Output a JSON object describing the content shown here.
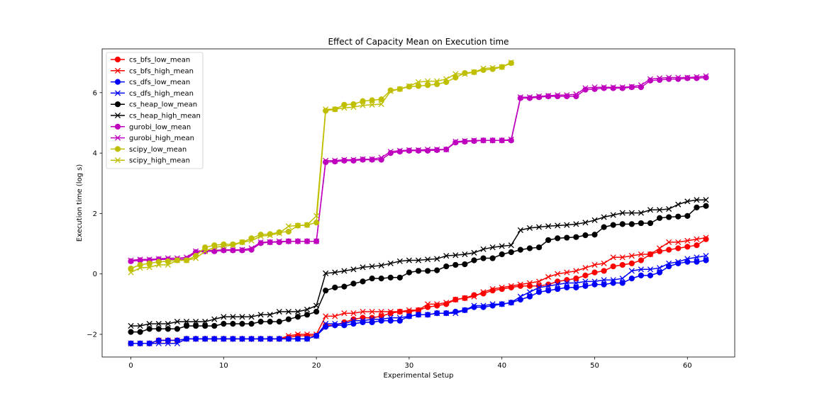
{
  "chart_data": {
    "type": "line",
    "title": "Effect of Capacity Mean on Execution time",
    "xlabel": "Experimental Setup",
    "ylabel": "Execution time (log s)",
    "xlim": [
      -3.1,
      65.1
    ],
    "ylim": [
      -2.75,
      7.45
    ],
    "xticks": [
      0,
      10,
      20,
      30,
      40,
      50,
      60
    ],
    "yticks": [
      -2,
      0,
      2,
      4,
      6
    ],
    "grid": false,
    "legend_position": "top-left",
    "series": [
      {
        "name": "cs_bfs_low_mean",
        "color": "#ff0000",
        "marker": "circle",
        "x": [
          0,
          1,
          2,
          3,
          4,
          5,
          6,
          7,
          8,
          9,
          10,
          11,
          12,
          13,
          14,
          15,
          16,
          17,
          18,
          19,
          20,
          21,
          22,
          23,
          24,
          25,
          26,
          27,
          28,
          29,
          30,
          31,
          32,
          33,
          34,
          35,
          36,
          37,
          38,
          39,
          40,
          41,
          42,
          43,
          44,
          45,
          46,
          47,
          48,
          49,
          50,
          51,
          52,
          53,
          54,
          55,
          56,
          57,
          58,
          59,
          60,
          61,
          62
        ],
        "y": [
          -2.3,
          -2.3,
          -2.3,
          -2.2,
          -2.2,
          -2.2,
          -2.15,
          -2.15,
          -2.15,
          -2.15,
          -2.15,
          -2.15,
          -2.15,
          -2.15,
          -2.15,
          -2.15,
          -2.15,
          -2.1,
          -2.05,
          -2.05,
          -2.05,
          -1.7,
          -1.7,
          -1.6,
          -1.5,
          -1.45,
          -1.45,
          -1.4,
          -1.3,
          -1.25,
          -1.25,
          -1.2,
          -1.1,
          -1.05,
          -1.0,
          -0.85,
          -0.8,
          -0.7,
          -0.65,
          -0.55,
          -0.5,
          -0.45,
          -0.4,
          -0.4,
          -0.4,
          -0.35,
          -0.25,
          -0.2,
          -0.15,
          -0.05,
          0.05,
          0.1,
          0.25,
          0.3,
          0.35,
          0.45,
          0.65,
          0.75,
          0.8,
          0.85,
          0.9,
          0.95,
          1.15
        ]
      },
      {
        "name": "cs_bfs_high_mean",
        "color": "#ff0000",
        "marker": "x",
        "x": [
          0,
          1,
          2,
          3,
          4,
          5,
          6,
          7,
          8,
          9,
          10,
          11,
          12,
          13,
          14,
          15,
          16,
          17,
          18,
          19,
          20,
          21,
          22,
          23,
          24,
          25,
          26,
          27,
          28,
          29,
          30,
          31,
          32,
          33,
          34,
          35,
          36,
          37,
          38,
          39,
          40,
          41,
          42,
          43,
          44,
          45,
          46,
          47,
          48,
          49,
          50,
          51,
          52,
          53,
          54,
          55,
          56,
          57,
          58,
          59,
          60,
          61,
          62
        ],
        "y": [
          -2.3,
          -2.3,
          -2.3,
          -2.2,
          -2.2,
          -2.2,
          -2.15,
          -2.15,
          -2.15,
          -2.15,
          -2.15,
          -2.15,
          -2.15,
          -2.15,
          -2.15,
          -2.15,
          -2.15,
          -2.05,
          -2.0,
          -2.0,
          -2.0,
          -1.4,
          -1.4,
          -1.3,
          -1.3,
          -1.25,
          -1.25,
          -1.25,
          -1.25,
          -1.25,
          -1.2,
          -1.2,
          -1.0,
          -1.0,
          -0.95,
          -0.85,
          -0.8,
          -0.75,
          -0.6,
          -0.5,
          -0.45,
          -0.4,
          -0.35,
          -0.3,
          -0.25,
          -0.1,
          0.0,
          0.05,
          0.1,
          0.2,
          0.3,
          0.35,
          0.55,
          0.55,
          0.6,
          0.65,
          0.65,
          0.85,
          1.05,
          1.05,
          1.1,
          1.15,
          1.2
        ]
      },
      {
        "name": "cs_dfs_low_mean",
        "color": "#0000ff",
        "marker": "circle",
        "x": [
          0,
          1,
          2,
          3,
          4,
          5,
          6,
          7,
          8,
          9,
          10,
          11,
          12,
          13,
          14,
          15,
          16,
          17,
          18,
          19,
          20,
          21,
          22,
          23,
          24,
          25,
          26,
          27,
          28,
          29,
          30,
          31,
          32,
          33,
          34,
          35,
          36,
          37,
          38,
          39,
          40,
          41,
          42,
          43,
          44,
          45,
          46,
          47,
          48,
          49,
          50,
          51,
          52,
          53,
          54,
          55,
          56,
          57,
          58,
          59,
          60,
          61,
          62
        ],
        "y": [
          -2.3,
          -2.3,
          -2.3,
          -2.2,
          -2.2,
          -2.2,
          -2.15,
          -2.15,
          -2.15,
          -2.15,
          -2.15,
          -2.15,
          -2.15,
          -2.15,
          -2.15,
          -2.15,
          -2.15,
          -2.15,
          -2.15,
          -2.15,
          -2.05,
          -1.75,
          -1.7,
          -1.7,
          -1.65,
          -1.6,
          -1.6,
          -1.55,
          -1.55,
          -1.55,
          -1.4,
          -1.35,
          -1.35,
          -1.3,
          -1.3,
          -1.25,
          -1.2,
          -1.1,
          -1.1,
          -1.05,
          -1.0,
          -0.95,
          -0.85,
          -0.75,
          -0.6,
          -0.55,
          -0.5,
          -0.45,
          -0.45,
          -0.4,
          -0.35,
          -0.35,
          -0.3,
          -0.3,
          -0.15,
          -0.05,
          -0.05,
          0.05,
          0.25,
          0.35,
          0.4,
          0.4,
          0.45
        ]
      },
      {
        "name": "cs_dfs_high_mean",
        "color": "#0000ff",
        "marker": "x",
        "x": [
          0,
          1,
          2,
          3,
          4,
          5,
          6,
          7,
          8,
          9,
          10,
          11,
          12,
          13,
          14,
          15,
          16,
          17,
          18,
          19,
          20,
          21,
          22,
          23,
          24,
          25,
          26,
          27,
          28,
          29,
          30,
          31,
          32,
          33,
          34,
          35,
          36,
          37,
          38,
          39,
          40,
          41,
          42,
          43,
          44,
          45,
          46,
          47,
          48,
          49,
          50,
          51,
          52,
          53,
          54,
          55,
          56,
          57,
          58,
          59,
          60,
          61,
          62
        ],
        "y": [
          -2.3,
          -2.3,
          -2.3,
          -2.3,
          -2.3,
          -2.3,
          -2.15,
          -2.15,
          -2.15,
          -2.15,
          -2.15,
          -2.15,
          -2.15,
          -2.15,
          -2.15,
          -2.15,
          -2.15,
          -2.15,
          -2.15,
          -2.15,
          -2.05,
          -1.65,
          -1.65,
          -1.65,
          -1.55,
          -1.55,
          -1.5,
          -1.5,
          -1.45,
          -1.45,
          -1.4,
          -1.35,
          -1.35,
          -1.3,
          -1.3,
          -1.3,
          -1.2,
          -1.05,
          -1.05,
          -1.0,
          -1.0,
          -0.95,
          -0.75,
          -0.6,
          -0.45,
          -0.4,
          -0.35,
          -0.3,
          -0.3,
          -0.25,
          -0.25,
          -0.2,
          -0.2,
          -0.15,
          0.1,
          0.15,
          0.15,
          0.2,
          0.35,
          0.4,
          0.5,
          0.55,
          0.6
        ]
      },
      {
        "name": "cs_heap_low_mean",
        "color": "#000000",
        "marker": "circle",
        "x": [
          0,
          1,
          2,
          3,
          4,
          5,
          6,
          7,
          8,
          9,
          10,
          11,
          12,
          13,
          14,
          15,
          16,
          17,
          18,
          19,
          20,
          21,
          22,
          23,
          24,
          25,
          26,
          27,
          28,
          29,
          30,
          31,
          32,
          33,
          34,
          35,
          36,
          37,
          38,
          39,
          40,
          41,
          42,
          43,
          44,
          45,
          46,
          47,
          48,
          49,
          50,
          51,
          52,
          53,
          54,
          55,
          56,
          57,
          58,
          59,
          60,
          61,
          62
        ],
        "y": [
          -1.92,
          -1.92,
          -1.82,
          -1.82,
          -1.82,
          -1.82,
          -1.72,
          -1.72,
          -1.72,
          -1.72,
          -1.65,
          -1.65,
          -1.65,
          -1.65,
          -1.58,
          -1.58,
          -1.58,
          -1.5,
          -1.42,
          -1.35,
          -1.25,
          -0.55,
          -0.45,
          -0.42,
          -0.32,
          -0.25,
          -0.15,
          -0.15,
          -0.12,
          -0.12,
          0.05,
          0.1,
          0.1,
          0.12,
          0.25,
          0.3,
          0.32,
          0.45,
          0.52,
          0.52,
          0.65,
          0.72,
          0.8,
          0.85,
          0.88,
          1.12,
          1.18,
          1.2,
          1.22,
          1.28,
          1.3,
          1.55,
          1.62,
          1.65,
          1.65,
          1.68,
          1.68,
          1.85,
          1.88,
          1.9,
          1.92,
          2.2,
          2.25
        ]
      },
      {
        "name": "cs_heap_high_mean",
        "color": "#000000",
        "marker": "x",
        "x": [
          0,
          1,
          2,
          3,
          4,
          5,
          6,
          7,
          8,
          9,
          10,
          11,
          12,
          13,
          14,
          15,
          16,
          17,
          18,
          19,
          20,
          21,
          22,
          23,
          24,
          25,
          26,
          27,
          28,
          29,
          30,
          31,
          32,
          33,
          34,
          35,
          36,
          37,
          38,
          39,
          40,
          41,
          42,
          43,
          44,
          45,
          46,
          47,
          48,
          49,
          50,
          51,
          52,
          53,
          54,
          55,
          56,
          57,
          58,
          59,
          60,
          61,
          62
        ],
        "y": [
          -1.72,
          -1.72,
          -1.65,
          -1.65,
          -1.65,
          -1.58,
          -1.58,
          -1.58,
          -1.58,
          -1.5,
          -1.42,
          -1.42,
          -1.42,
          -1.42,
          -1.35,
          -1.35,
          -1.25,
          -1.25,
          -1.25,
          -1.18,
          -1.05,
          0.02,
          0.05,
          0.1,
          0.15,
          0.22,
          0.25,
          0.28,
          0.35,
          0.42,
          0.45,
          0.45,
          0.48,
          0.5,
          0.6,
          0.62,
          0.65,
          0.7,
          0.82,
          0.88,
          0.92,
          0.95,
          1.45,
          1.52,
          1.55,
          1.58,
          1.6,
          1.62,
          1.65,
          1.7,
          1.78,
          1.88,
          1.95,
          2.02,
          2.02,
          2.02,
          2.12,
          2.12,
          2.15,
          2.3,
          2.4,
          2.45,
          2.45
        ]
      },
      {
        "name": "gurobi_low_mean",
        "color": "#bf00bf",
        "marker": "circle",
        "x": [
          0,
          1,
          2,
          3,
          4,
          5,
          6,
          7,
          8,
          9,
          10,
          11,
          12,
          13,
          14,
          15,
          16,
          17,
          18,
          19,
          20,
          21,
          22,
          23,
          24,
          25,
          26,
          27,
          28,
          29,
          30,
          31,
          32,
          33,
          34,
          35,
          36,
          37,
          38,
          39,
          40,
          41,
          42,
          43,
          44,
          45,
          46,
          47,
          48,
          49,
          50,
          51,
          52,
          53,
          54,
          55,
          56,
          57,
          58,
          59,
          60,
          61,
          62
        ],
        "y": [
          0.42,
          0.45,
          0.45,
          0.48,
          0.48,
          0.48,
          0.5,
          0.72,
          0.75,
          0.75,
          0.78,
          0.78,
          0.78,
          0.8,
          1.02,
          1.05,
          1.05,
          1.08,
          1.08,
          1.08,
          1.08,
          3.7,
          3.72,
          3.75,
          3.75,
          3.78,
          3.78,
          3.78,
          4.0,
          4.05,
          4.08,
          4.08,
          4.08,
          4.1,
          4.12,
          4.35,
          4.38,
          4.4,
          4.42,
          4.42,
          4.42,
          4.42,
          5.82,
          5.82,
          5.85,
          5.88,
          5.88,
          5.88,
          5.88,
          6.1,
          6.12,
          6.15,
          6.15,
          6.15,
          6.18,
          6.18,
          6.4,
          6.42,
          6.45,
          6.45,
          6.48,
          6.48,
          6.5
        ]
      },
      {
        "name": "gurobi_high_mean",
        "color": "#bf00bf",
        "marker": "x",
        "x": [
          0,
          1,
          2,
          3,
          4,
          5,
          6,
          7,
          8,
          9,
          10,
          11,
          12,
          13,
          14,
          15,
          16,
          17,
          18,
          19,
          20,
          21,
          22,
          23,
          24,
          25,
          26,
          27,
          28,
          29,
          30,
          31,
          32,
          33,
          34,
          35,
          36,
          37,
          38,
          39,
          40,
          41,
          42,
          43,
          44,
          45,
          46,
          47,
          48,
          49,
          50,
          51,
          52,
          53,
          54,
          55,
          56,
          57,
          58,
          59,
          60,
          61,
          62
        ],
        "y": [
          0.45,
          0.48,
          0.48,
          0.5,
          0.52,
          0.52,
          0.55,
          0.75,
          0.78,
          0.78,
          0.8,
          0.8,
          0.8,
          0.85,
          1.05,
          1.05,
          1.08,
          1.08,
          1.08,
          1.08,
          1.08,
          3.75,
          3.75,
          3.78,
          3.78,
          3.8,
          3.8,
          3.85,
          4.05,
          4.08,
          4.1,
          4.1,
          4.12,
          4.12,
          4.12,
          4.38,
          4.4,
          4.42,
          4.42,
          4.42,
          4.42,
          4.45,
          5.85,
          5.85,
          5.88,
          5.9,
          5.92,
          5.92,
          5.95,
          6.15,
          6.18,
          6.18,
          6.18,
          6.18,
          6.2,
          6.25,
          6.45,
          6.48,
          6.5,
          6.5,
          6.5,
          6.52,
          6.55
        ]
      },
      {
        "name": "scipy_low_mean",
        "color": "#bfbf00",
        "marker": "circle",
        "x": [
          0,
          1,
          2,
          3,
          4,
          5,
          6,
          7,
          8,
          9,
          10,
          11,
          12,
          13,
          14,
          15,
          16,
          17,
          18,
          19,
          20,
          21,
          22,
          23,
          24,
          25,
          26,
          27,
          28,
          29,
          30,
          31,
          32,
          33,
          34,
          35,
          36,
          37,
          38,
          39,
          40,
          41
        ],
        "y": [
          0.18,
          0.3,
          0.35,
          0.4,
          0.42,
          0.45,
          0.45,
          0.6,
          0.88,
          0.95,
          0.98,
          0.98,
          1.05,
          1.18,
          1.3,
          1.32,
          1.38,
          1.4,
          1.6,
          1.62,
          1.7,
          5.4,
          5.45,
          5.6,
          5.62,
          5.72,
          5.75,
          5.78,
          6.08,
          6.12,
          6.2,
          6.22,
          6.25,
          6.28,
          6.35,
          6.5,
          6.65,
          6.68,
          6.75,
          6.78,
          6.85,
          6.98
        ]
      },
      {
        "name": "scipy_high_mean",
        "color": "#bfbf00",
        "marker": "x",
        "x": [
          0,
          1,
          2,
          3,
          4,
          5,
          6,
          7,
          8,
          9,
          10,
          11,
          12,
          13,
          14,
          15,
          16,
          17,
          18,
          19,
          20,
          21,
          22,
          23,
          24,
          25,
          26,
          27,
          28,
          29,
          30,
          31,
          32,
          33,
          34,
          35,
          36,
          37,
          38,
          39,
          40,
          41
        ],
        "y": [
          0.05,
          0.2,
          0.22,
          0.3,
          0.3,
          0.45,
          0.45,
          0.52,
          0.75,
          0.88,
          0.92,
          0.95,
          1.05,
          1.1,
          1.25,
          1.28,
          1.35,
          1.58,
          1.6,
          1.62,
          1.92,
          5.45,
          5.45,
          5.5,
          5.52,
          5.58,
          5.6,
          5.62,
          6.05,
          6.12,
          6.22,
          6.35,
          6.38,
          6.38,
          6.45,
          6.62,
          6.62,
          6.68,
          6.8,
          6.82,
          6.85,
          7.0
        ]
      }
    ]
  }
}
